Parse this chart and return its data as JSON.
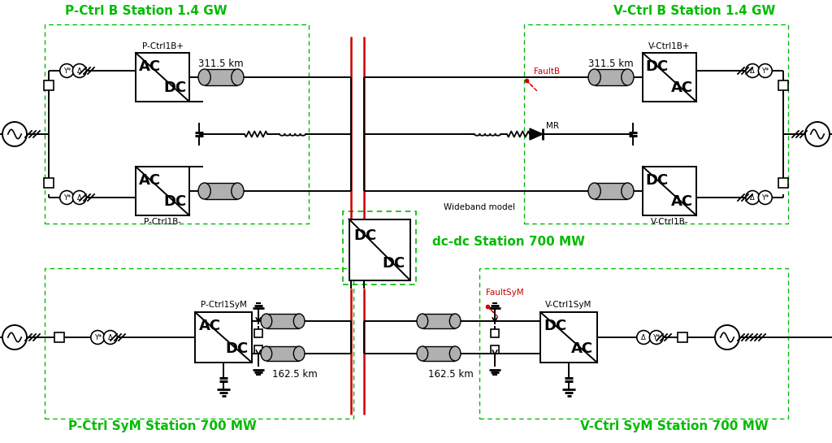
{
  "bg_color": "#ffffff",
  "green": "#00bb00",
  "red": "#cc0000",
  "black": "#000000",
  "gray_cyl": "#b0b0b0",
  "label_top_left": "P-Ctrl B Station 1.4 GW",
  "label_top_right": "V-Ctrl B Station 1.4 GW",
  "label_bot_left": "P-Ctrl SyM Station 700 MW",
  "label_bot_right": "V-Ctrl SyM Station 700 MW",
  "label_dcdc": "dc-dc Station 700 MW",
  "label_311_1": "311.5 km",
  "label_311_2": "311.5 km",
  "label_162_1": "162.5 km",
  "label_162_2": "162.5 km",
  "label_pcb_plus": "P-Ctrl1B+",
  "label_pcb_minus": "P-Ctrl1B-",
  "label_vcb_plus": "V-Ctrl1B+",
  "label_vcb_minus": "V-Ctrl1B-",
  "label_pcsym": "P-Ctrl1SyM",
  "label_vcsym": "V-Ctrl1SyM",
  "label_faultb": "FaultB",
  "label_faultsym": "FaultSyM",
  "label_mr": "MR",
  "label_wb": "Wideband model"
}
